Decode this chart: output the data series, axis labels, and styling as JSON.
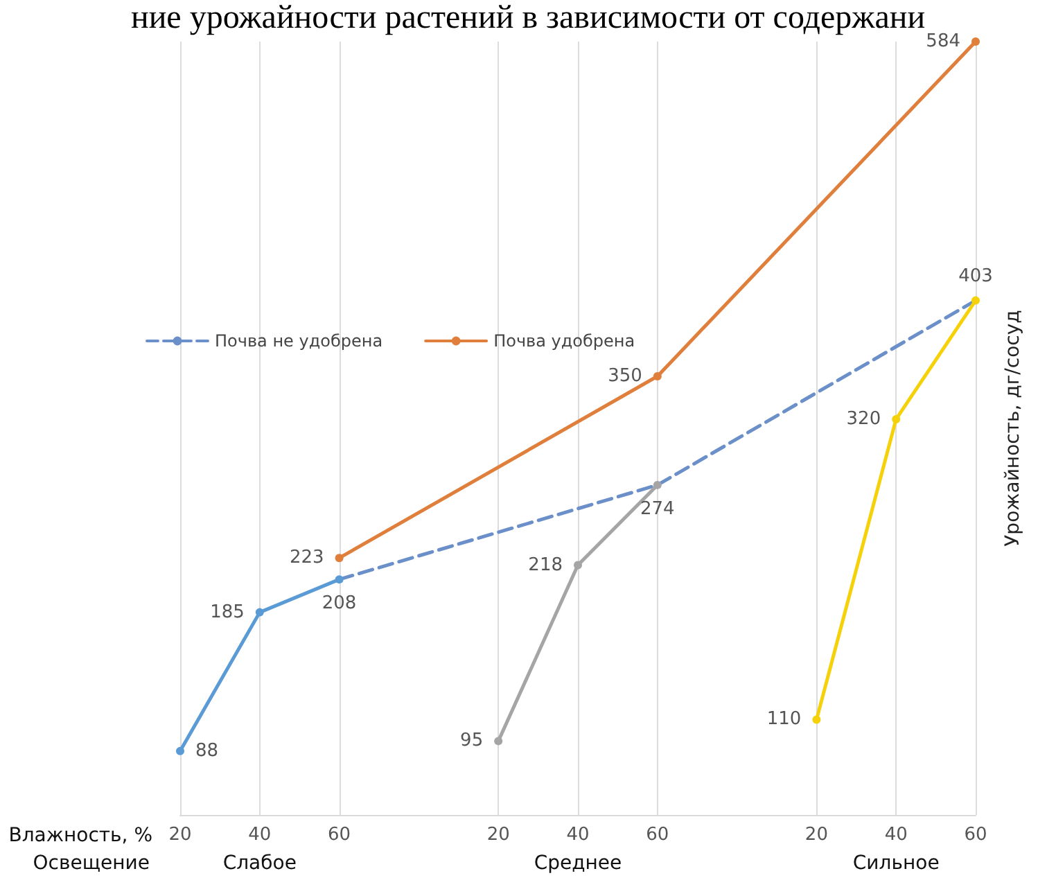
{
  "chart_data": {
    "type": "line",
    "title": "ние урожайности растений в зависимости от содержани",
    "ylabel": "Урожайность, дг/сосуд",
    "categories": [
      "20",
      "40",
      "60",
      null,
      "20",
      "40",
      "60",
      null,
      "20",
      "40",
      "60"
    ],
    "annotations": [
      "Влажность, %",
      "Освещение",
      "Слабое",
      "Среднее",
      "Сильное"
    ],
    "series": [
      {
        "color": "#5b9bd5",
        "values": [
          88,
          185,
          208,
          null,
          null,
          null,
          null,
          null,
          null,
          null,
          null
        ],
        "value_labels": [
          "88",
          "185",
          "208",
          null,
          null,
          null,
          null,
          null,
          null,
          null,
          null
        ]
      },
      {
        "color": "#a5a5a5",
        "values": [
          null,
          null,
          null,
          null,
          95,
          218,
          274,
          null,
          null,
          null,
          null
        ],
        "value_labels": [
          null,
          null,
          null,
          null,
          "95",
          "218",
          "274",
          null,
          null,
          null,
          null
        ]
      },
      {
        "color": "#f5d10a",
        "values": [
          null,
          null,
          null,
          null,
          null,
          null,
          null,
          null,
          110,
          320,
          403
        ],
        "value_labels": [
          null,
          null,
          null,
          null,
          null,
          null,
          null,
          null,
          "110",
          "320",
          "403"
        ]
      },
      {
        "name": "Почва не удобрена",
        "color": "#6a8fc9",
        "line_style": "dashed",
        "marker": "none",
        "values": [
          null,
          null,
          208,
          null,
          null,
          null,
          274,
          null,
          null,
          null,
          403
        ]
      },
      {
        "name": "Почва удобрена",
        "color": "#e07f3c",
        "values": [
          null,
          null,
          223,
          null,
          null,
          null,
          350,
          null,
          null,
          null,
          584
        ],
        "value_labels": [
          null,
          null,
          "223",
          null,
          null,
          null,
          "350",
          null,
          null,
          null,
          "584"
        ]
      }
    ],
    "marker": "circle",
    "line_style": "solid",
    "grid": "x",
    "legend": "top left"
  }
}
